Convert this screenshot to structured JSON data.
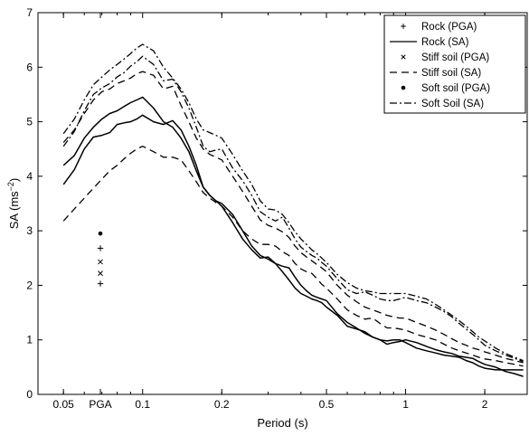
{
  "chart_data": {
    "type": "line",
    "x_scale": "log",
    "xlabel": "Period (s)",
    "ylabel_main": "SA (ms",
    "ylabel_exp": "−2",
    "ylabel_close": ")",
    "ylim": [
      0,
      7
    ],
    "xlim": [
      0.04,
      2.9
    ],
    "y_ticks": [
      "0",
      "1",
      "2",
      "3",
      "4",
      "5",
      "6",
      "7"
    ],
    "x_ticks": [
      {
        "label": "PGA",
        "kind": "pga"
      },
      {
        "label": "0.05",
        "value": 0.05
      },
      {
        "label": "0.1",
        "value": 0.1
      },
      {
        "label": "0.2",
        "value": 0.2
      },
      {
        "label": "0.5",
        "value": 0.5
      },
      {
        "label": "1",
        "value": 1
      },
      {
        "label": "2",
        "value": 2
      }
    ],
    "grid": false,
    "legend_position": "top-right",
    "legend": [
      {
        "label": "Rock (PGA)",
        "kind": "marker",
        "marker": "plus"
      },
      {
        "label": "Rock (SA)",
        "kind": "line",
        "dash": "solid",
        "width": 1.3
      },
      {
        "label": "Stiff soil (PGA)",
        "kind": "marker",
        "marker": "x"
      },
      {
        "label": "Stiff soil (SA)",
        "kind": "line",
        "dash": "8,5",
        "width": 1.3
      },
      {
        "label": "Soft soil (PGA)",
        "kind": "marker",
        "marker": "dot"
      },
      {
        "label": "Soft Soil (SA)",
        "kind": "line",
        "dash": "8,3,2,3",
        "width": 1.3
      }
    ],
    "pga_points": [
      {
        "name": "Rock (PGA)",
        "marker": "plus",
        "y": 2.03
      },
      {
        "name": "Rock (PGA)",
        "marker": "plus",
        "y": 2.68
      },
      {
        "name": "Stiff soil (PGA)",
        "marker": "x",
        "y": 2.22
      },
      {
        "name": "Stiff soil (PGA)",
        "marker": "x",
        "y": 2.43
      },
      {
        "name": "Soft soil (PGA)",
        "marker": "dot",
        "y": 2.95
      }
    ],
    "series": [
      {
        "group": "Rock (SA)",
        "dash": "solid",
        "width": 1.5,
        "x": [
          0.05,
          0.055,
          0.06,
          0.065,
          0.07,
          0.075,
          0.08,
          0.085,
          0.09,
          0.095,
          0.1,
          0.11,
          0.12,
          0.13,
          0.14,
          0.15,
          0.16,
          0.17,
          0.18,
          0.19,
          0.2,
          0.22,
          0.24,
          0.26,
          0.28,
          0.3,
          0.32,
          0.34,
          0.36,
          0.38,
          0.4,
          0.42,
          0.44,
          0.46,
          0.48,
          0.5,
          0.55,
          0.6,
          0.65,
          0.7,
          0.75,
          0.8,
          0.85,
          0.9,
          0.95,
          1.0,
          1.1,
          1.2,
          1.3,
          1.4,
          1.5,
          1.6,
          1.7,
          1.8,
          1.9,
          2.0,
          2.2,
          2.4,
          2.6,
          2.8
        ],
        "y": [
          3.85,
          4.12,
          4.5,
          4.72,
          4.75,
          4.8,
          4.95,
          4.98,
          5.0,
          5.05,
          5.12,
          5.0,
          4.95,
          5.02,
          4.85,
          4.55,
          4.2,
          3.8,
          3.65,
          3.55,
          3.45,
          3.15,
          2.85,
          2.65,
          2.5,
          2.52,
          2.4,
          2.25,
          2.1,
          1.95,
          1.85,
          1.8,
          1.75,
          1.72,
          1.68,
          1.6,
          1.45,
          1.25,
          1.2,
          1.15,
          1.05,
          1.0,
          0.92,
          0.95,
          0.97,
          1.0,
          0.95,
          0.88,
          0.82,
          0.78,
          0.75,
          0.7,
          0.68,
          0.66,
          0.6,
          0.55,
          0.5,
          0.42,
          0.38,
          0.33
        ]
      },
      {
        "group": "Rock (SA)",
        "dash": "solid",
        "width": 1.5,
        "x": [
          0.05,
          0.055,
          0.06,
          0.065,
          0.07,
          0.075,
          0.08,
          0.085,
          0.09,
          0.095,
          0.1,
          0.11,
          0.12,
          0.13,
          0.14,
          0.15,
          0.16,
          0.17,
          0.18,
          0.19,
          0.2,
          0.22,
          0.24,
          0.26,
          0.28,
          0.3,
          0.32,
          0.34,
          0.36,
          0.38,
          0.4,
          0.42,
          0.44,
          0.46,
          0.48,
          0.5,
          0.55,
          0.6,
          0.65,
          0.7,
          0.75,
          0.8,
          0.85,
          0.9,
          0.95,
          1.0,
          1.1,
          1.2,
          1.3,
          1.4,
          1.5,
          1.6,
          1.7,
          1.8,
          1.9,
          2.0,
          2.2,
          2.4,
          2.6,
          2.8
        ],
        "y": [
          4.2,
          4.38,
          4.7,
          4.9,
          5.05,
          5.15,
          5.2,
          5.28,
          5.35,
          5.4,
          5.45,
          5.25,
          5.0,
          4.9,
          4.7,
          4.45,
          4.1,
          3.8,
          3.65,
          3.55,
          3.5,
          3.3,
          3.0,
          2.72,
          2.55,
          2.48,
          2.4,
          2.35,
          2.32,
          2.15,
          2.0,
          1.9,
          1.82,
          1.78,
          1.75,
          1.72,
          1.48,
          1.32,
          1.22,
          1.12,
          1.05,
          1.0,
          0.98,
          1.0,
          1.0,
          0.95,
          0.85,
          0.8,
          0.76,
          0.72,
          0.7,
          0.68,
          0.62,
          0.58,
          0.52,
          0.48,
          0.45,
          0.45,
          0.45,
          0.45
        ]
      },
      {
        "group": "Stiff soil (SA)",
        "dash": "8,5",
        "width": 1.3,
        "x": [
          0.05,
          0.055,
          0.06,
          0.065,
          0.07,
          0.075,
          0.08,
          0.085,
          0.09,
          0.095,
          0.1,
          0.11,
          0.12,
          0.13,
          0.14,
          0.15,
          0.16,
          0.17,
          0.18,
          0.19,
          0.2,
          0.22,
          0.24,
          0.26,
          0.28,
          0.3,
          0.32,
          0.34,
          0.36,
          0.38,
          0.4,
          0.42,
          0.44,
          0.46,
          0.48,
          0.5,
          0.55,
          0.6,
          0.65,
          0.7,
          0.75,
          0.8,
          0.85,
          0.9,
          0.95,
          1.0,
          1.1,
          1.2,
          1.3,
          1.4,
          1.5,
          1.6,
          1.7,
          1.8,
          1.9,
          2.0,
          2.2,
          2.4,
          2.6,
          2.8
        ],
        "y": [
          3.18,
          3.4,
          3.6,
          3.78,
          3.95,
          4.1,
          4.2,
          4.32,
          4.42,
          4.5,
          4.55,
          4.45,
          4.35,
          4.35,
          4.3,
          4.1,
          3.9,
          3.7,
          3.6,
          3.52,
          3.45,
          3.25,
          3.0,
          2.85,
          2.75,
          2.75,
          2.72,
          2.62,
          2.55,
          2.4,
          2.3,
          2.25,
          2.22,
          2.12,
          2.02,
          1.95,
          1.75,
          1.55,
          1.45,
          1.38,
          1.4,
          1.3,
          1.22,
          1.22,
          1.2,
          1.18,
          1.1,
          1.05,
          1.0,
          0.92,
          0.85,
          0.8,
          0.76,
          0.72,
          0.68,
          0.65,
          0.62,
          0.58,
          0.55,
          0.52
        ]
      },
      {
        "group": "Stiff soil (SA)",
        "dash": "8,5",
        "width": 1.3,
        "x": [
          0.05,
          0.055,
          0.06,
          0.065,
          0.07,
          0.075,
          0.08,
          0.085,
          0.09,
          0.095,
          0.1,
          0.11,
          0.12,
          0.13,
          0.14,
          0.15,
          0.16,
          0.17,
          0.18,
          0.19,
          0.2,
          0.22,
          0.24,
          0.26,
          0.28,
          0.3,
          0.32,
          0.34,
          0.36,
          0.38,
          0.4,
          0.42,
          0.44,
          0.46,
          0.48,
          0.5,
          0.55,
          0.6,
          0.65,
          0.7,
          0.75,
          0.8,
          0.85,
          0.9,
          0.95,
          1.0,
          1.1,
          1.2,
          1.3,
          1.4,
          1.5,
          1.6,
          1.7,
          1.8,
          1.9,
          2.0,
          2.2,
          2.4,
          2.6,
          2.8
        ],
        "y": [
          4.62,
          4.85,
          5.15,
          5.4,
          5.55,
          5.6,
          5.7,
          5.75,
          5.8,
          5.88,
          5.92,
          5.85,
          5.6,
          5.65,
          5.3,
          5.0,
          4.7,
          4.5,
          4.4,
          4.35,
          4.3,
          4.0,
          3.72,
          3.45,
          3.2,
          3.1,
          3.05,
          2.98,
          2.88,
          2.72,
          2.6,
          2.52,
          2.45,
          2.38,
          2.32,
          2.25,
          2.0,
          1.82,
          1.7,
          1.6,
          1.55,
          1.5,
          1.45,
          1.42,
          1.4,
          1.4,
          1.32,
          1.25,
          1.18,
          1.1,
          1.02,
          0.95,
          0.9,
          0.85,
          0.82,
          0.78,
          0.72,
          0.66,
          0.62,
          0.58
        ]
      },
      {
        "group": "Soft Soil (SA)",
        "dash": "8,3,2,3",
        "width": 1.3,
        "x": [
          0.05,
          0.055,
          0.06,
          0.065,
          0.07,
          0.075,
          0.08,
          0.085,
          0.09,
          0.095,
          0.1,
          0.11,
          0.12,
          0.13,
          0.14,
          0.15,
          0.16,
          0.17,
          0.18,
          0.19,
          0.2,
          0.22,
          0.24,
          0.26,
          0.28,
          0.3,
          0.32,
          0.34,
          0.36,
          0.38,
          0.4,
          0.42,
          0.44,
          0.46,
          0.48,
          0.5,
          0.55,
          0.6,
          0.65,
          0.7,
          0.75,
          0.8,
          0.85,
          0.9,
          0.95,
          1.0,
          1.1,
          1.2,
          1.3,
          1.4,
          1.5,
          1.6,
          1.7,
          1.8,
          1.9,
          2.0,
          2.2,
          2.4,
          2.6,
          2.8
        ],
        "y": [
          4.55,
          4.82,
          5.2,
          5.5,
          5.62,
          5.7,
          5.82,
          5.9,
          6.02,
          6.1,
          6.2,
          6.05,
          5.75,
          5.78,
          5.55,
          5.25,
          4.9,
          4.55,
          4.45,
          4.48,
          4.5,
          4.15,
          3.92,
          3.65,
          3.35,
          3.25,
          3.18,
          3.25,
          3.05,
          2.85,
          2.7,
          2.62,
          2.55,
          2.5,
          2.42,
          2.35,
          2.12,
          1.92,
          1.85,
          1.88,
          1.82,
          1.75,
          1.72,
          1.72,
          1.75,
          1.78,
          1.72,
          1.68,
          1.6,
          1.52,
          1.42,
          1.3,
          1.2,
          1.1,
          1.0,
          0.9,
          0.8,
          0.72,
          0.66,
          0.6
        ]
      },
      {
        "group": "Soft Soil (SA)",
        "dash": "8,3,2,3",
        "width": 1.3,
        "x": [
          0.05,
          0.055,
          0.06,
          0.065,
          0.07,
          0.075,
          0.08,
          0.085,
          0.09,
          0.095,
          0.1,
          0.11,
          0.12,
          0.13,
          0.14,
          0.15,
          0.16,
          0.17,
          0.18,
          0.19,
          0.2,
          0.22,
          0.24,
          0.26,
          0.28,
          0.3,
          0.32,
          0.34,
          0.36,
          0.38,
          0.4,
          0.42,
          0.44,
          0.46,
          0.48,
          0.5,
          0.55,
          0.6,
          0.65,
          0.7,
          0.75,
          0.8,
          0.85,
          0.9,
          0.95,
          1.0,
          1.1,
          1.2,
          1.3,
          1.4,
          1.5,
          1.6,
          1.7,
          1.8,
          1.9,
          2.0,
          2.2,
          2.4,
          2.6,
          2.8
        ],
        "y": [
          4.78,
          5.05,
          5.4,
          5.68,
          5.82,
          5.95,
          6.05,
          6.15,
          6.25,
          6.35,
          6.42,
          6.3,
          6.0,
          5.8,
          5.6,
          5.35,
          5.05,
          4.85,
          4.8,
          4.75,
          4.7,
          4.4,
          4.1,
          3.85,
          3.55,
          3.4,
          3.38,
          3.3,
          3.15,
          2.98,
          2.85,
          2.75,
          2.65,
          2.58,
          2.5,
          2.42,
          2.2,
          2.05,
          1.95,
          1.9,
          1.88,
          1.85,
          1.85,
          1.85,
          1.85,
          1.85,
          1.8,
          1.75,
          1.65,
          1.55,
          1.45,
          1.35,
          1.25,
          1.15,
          1.05,
          0.98,
          0.85,
          0.75,
          0.68,
          0.62
        ]
      }
    ]
  }
}
